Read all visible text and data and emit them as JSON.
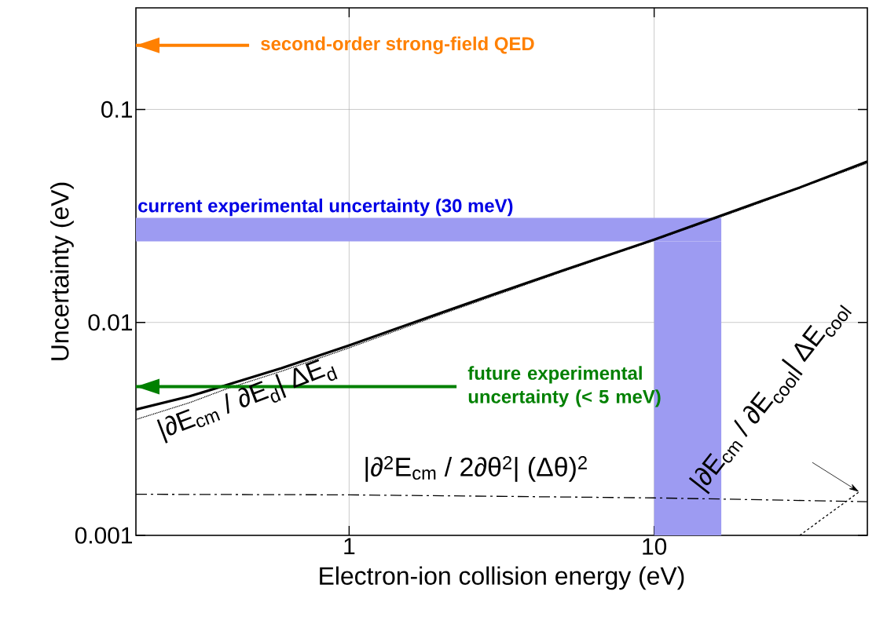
{
  "chart_data": {
    "type": "line",
    "xlabel": "Electron-ion collision energy (eV)",
    "ylabel": "Uncertainty (eV)",
    "log": "xy",
    "grid": true,
    "marker": "none",
    "xlim": [
      0.2,
      50
    ],
    "ylim": [
      0.001,
      0.3
    ],
    "xticks": [
      1,
      10
    ],
    "yticks": [
      0.001,
      0.01,
      0.1
    ],
    "series": [
      {
        "color": "#000000",
        "line_style": "solid",
        "x": [
          0.2,
          0.3,
          0.4,
          0.6,
          1,
          2,
          3,
          5,
          10,
          20,
          30,
          50
        ],
        "values": [
          0.0039,
          0.0045,
          0.0051,
          0.0061,
          0.0078,
          0.0111,
          0.0136,
          0.0175,
          0.0245,
          0.035,
          0.043,
          0.057
        ]
      },
      {
        "name": "|∂E$_{cm}$ / ∂E$_{d}$| ΔE$_{d}$",
        "color": "#000000",
        "line_style": "dotted",
        "x": [
          0.2,
          0.3,
          0.4,
          0.6,
          1,
          2,
          5,
          10,
          20,
          50
        ],
        "values": [
          0.0035,
          0.0042,
          0.0049,
          0.0059,
          0.0076,
          0.0109,
          0.0173,
          0.0243,
          0.0345,
          0.056
        ]
      },
      {
        "name": "|∂$^{2}$E$_{cm}$ / 2∂θ$^{2}$| (Δθ)$^{2}$",
        "color": "#000000",
        "line_style": "dashdot",
        "x": [
          0.2,
          1,
          10,
          50
        ],
        "values": [
          0.00156,
          0.00155,
          0.0015,
          0.00144
        ]
      },
      {
        "name": "|∂E$_{cm}$ / ∂E$_{cool}$| ΔE$_{cool}$",
        "color": "#000000",
        "line_style": "dashed",
        "x": [
          30,
          47
        ],
        "values": [
          0.001,
          0.0016
        ]
      },
      {
        "color": "#ff8000",
        "line_style": "solid",
        "x": [
          0.2,
          0.47
        ],
        "values": [
          0.2,
          0.2
        ]
      },
      {
        "color": "#008000",
        "line_style": "solid",
        "x": [
          0.2,
          2.25
        ],
        "values": [
          0.005,
          0.005
        ]
      }
    ],
    "annotations": [
      "second-order strong-field QED",
      "future experimental uncertainty (< 5 meV)"
    ],
    "bands": [
      {
        "axis": "y",
        "from": 0.024,
        "to": 0.031,
        "label": "current experimental uncertainty (30 meV)",
        "color": "#9d9bf2"
      },
      {
        "axis": "x",
        "from": 10,
        "to": 16.6,
        "color": "#9d9bf2"
      }
    ]
  }
}
